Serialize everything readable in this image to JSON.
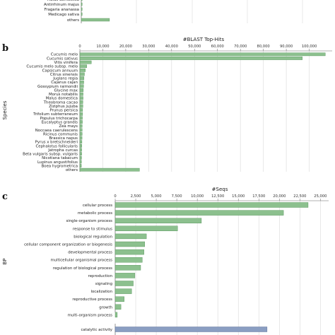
{
  "panels": {
    "b_label": "b",
    "c_label": "c"
  },
  "colors": {
    "green_bar": "#8cc08e",
    "green_edge": "#4f8f55",
    "blue_bar": "#8a9ec2",
    "blue_edge": "#4f638e",
    "grid": "#d9d9d9"
  },
  "chart_data": [
    {
      "id": "top",
      "type": "bar",
      "orientation": "horizontal",
      "note": "partially visible panel (top cropped)",
      "categories": [
        "Malus domestica",
        "Antirrhinum majus",
        "Fragaria ananassa",
        "Medicago sativa",
        "others"
      ],
      "values": [
        200,
        150,
        150,
        150,
        13500
      ],
      "xlim": [
        0,
        120000
      ]
    },
    {
      "id": "b",
      "type": "bar",
      "orientation": "horizontal",
      "title": "#BLAST Top-Hits",
      "ylabel": "Species",
      "xlim": [
        0,
        110000
      ],
      "ticks": [
        0,
        10000,
        20000,
        30000,
        40000,
        50000,
        60000,
        70000,
        80000,
        90000,
        100000
      ],
      "tick_labels": [
        "0",
        "10,000",
        "20,000",
        "30,000",
        "40,000",
        "50,000",
        "60,000",
        "70,000",
        "80,000",
        "90,000",
        "100,000"
      ],
      "categories": [
        "Cucumis melo",
        "Cucumis sativus",
        "Vitis vinifera",
        "Cucumis melo subsp. melo",
        "Capsicum annuum",
        "Citrus sinensis",
        "Juglans regia",
        "Cajanus cajan",
        "Gossypium raimondii",
        "Glycine max",
        "Morus notabilis",
        "Malus domestica",
        "Theobroma cacao",
        "Ziziphus jujuba",
        "Prunus persica",
        "Trifolium subterraneum",
        "Populus trichocarpa",
        "Eucalyptus grandis",
        "Zea mays",
        "Noccaea caerulescens",
        "Ricinus communis",
        "Brassica napus",
        "Pyrus x bretschneideri",
        "Cephalotus follicularis",
        "Jatropha curcas",
        "Beta vulgaris subsp. vulgaris",
        "Nicotiana tabacum",
        "Lupinus angustifolius",
        "Boea hygrometrica",
        "others"
      ],
      "values": [
        107000,
        97000,
        5000,
        3000,
        2400,
        2000,
        1800,
        1700,
        1600,
        1500,
        1400,
        1400,
        1300,
        1300,
        1200,
        1200,
        1100,
        1100,
        1000,
        1000,
        1000,
        950,
        900,
        850,
        800,
        800,
        750,
        700,
        650,
        26000
      ]
    },
    {
      "id": "c",
      "type": "bar",
      "orientation": "horizontal",
      "title": "#Seqs",
      "ylabel": "BP",
      "xlim": [
        0,
        26000
      ],
      "ticks": [
        0,
        2500,
        5000,
        7500,
        10000,
        12500,
        15000,
        17500,
        20000,
        22500,
        25000
      ],
      "tick_labels": [
        "0",
        "2,500",
        "5,000",
        "7,500",
        "10,000",
        "12,500",
        "15,000",
        "17,500",
        "20,000",
        "22,500",
        "25,000"
      ],
      "categories": [
        "cellular process",
        "metabolic process",
        "single-organism process",
        "response to stimulus",
        "biological regulation",
        "cellular component organization or biogenesis",
        "developmental process",
        "multicellular organismal process",
        "regulation of biological process",
        "reproduction",
        "signaling",
        "localization",
        "reproductive process",
        "growth",
        "multi-organism process"
      ],
      "values": [
        23500,
        20500,
        10500,
        7600,
        3800,
        3600,
        3500,
        3300,
        3100,
        2400,
        2200,
        2000,
        1100,
        700,
        250
      ],
      "extra_categories": [
        "catalytic activity"
      ],
      "extra_values": [
        18500
      ]
    }
  ]
}
